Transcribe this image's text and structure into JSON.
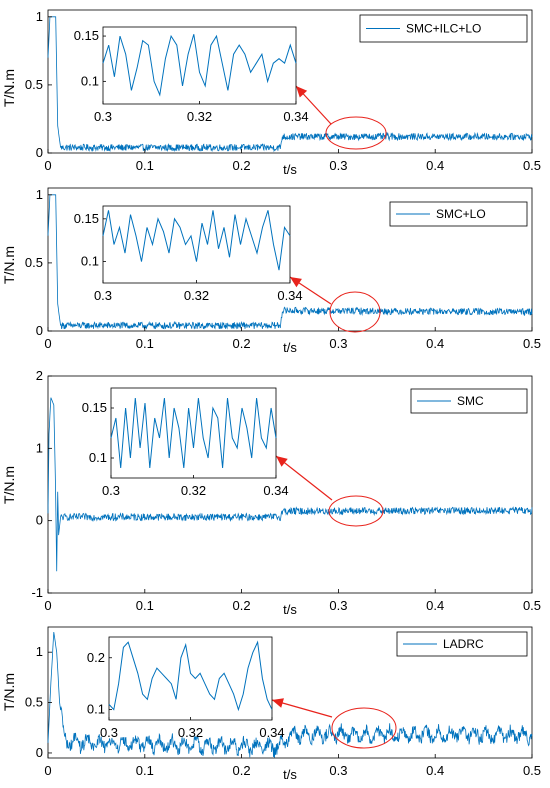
{
  "colors": {
    "series": "#0072BD",
    "annotation": "#E8231C",
    "axis": "#000000"
  },
  "chart_data": [
    {
      "type": "line",
      "legend": "SMC+ILC+LO",
      "legend_position": "top-right",
      "xlabel": "t/s",
      "ylabel": "T/N.m",
      "xlim": [
        0,
        0.5
      ],
      "ylim": [
        0,
        1.05
      ],
      "xticks": [
        "0",
        "0.1",
        "0.2",
        "t/s",
        "0.3",
        "0.4",
        "0.5"
      ],
      "yticks": [
        "0",
        "0.5",
        "1"
      ],
      "xtick_values": [
        0,
        0.1,
        0.2,
        0.3,
        0.4,
        0.5
      ],
      "ytick_values": [
        0,
        0.5,
        1
      ],
      "series": [
        {
          "profile": [
            [
              0,
              0.7
            ],
            [
              0.002,
              1.0
            ],
            [
              0.008,
              1.0
            ],
            [
              0.01,
              0.2
            ],
            [
              0.013,
              0.04
            ],
            [
              0.24,
              0.04
            ],
            [
              0.242,
              0.12
            ],
            [
              0.5,
              0.12
            ]
          ],
          "noise": 0.025
        }
      ],
      "inset": {
        "xlim": [
          0.3,
          0.34
        ],
        "ylim": [
          0.075,
          0.16
        ],
        "xticks": [
          "0.3",
          "0.32",
          "0.34"
        ],
        "xtick_values": [
          0.3,
          0.32,
          0.34
        ],
        "yticks": [
          "0.1",
          "0.15"
        ],
        "ytick_values": [
          0.1,
          0.15
        ],
        "values": [
          0.12,
          0.14,
          0.105,
          0.15,
          0.13,
          0.09,
          0.115,
          0.145,
          0.14,
          0.1,
          0.085,
          0.125,
          0.15,
          0.14,
          0.095,
          0.13,
          0.152,
          0.11,
          0.095,
          0.14,
          0.15,
          0.12,
          0.09,
          0.13,
          0.14,
          0.13,
          0.11,
          0.12,
          0.13,
          0.1,
          0.12,
          0.125,
          0.12,
          0.14,
          0.12
        ]
      }
    },
    {
      "type": "line",
      "legend": "SMC+LO",
      "legend_position": "top-right",
      "xlabel": "t/s",
      "ylabel": "T/N.m",
      "xlim": [
        0,
        0.5
      ],
      "ylim": [
        0,
        1.05
      ],
      "xticks": [
        "0",
        "0.1",
        "0.2",
        "t/s",
        "0.3",
        "0.4",
        "0.5"
      ],
      "yticks": [
        "0",
        "0.5",
        "1"
      ],
      "xtick_values": [
        0,
        0.1,
        0.2,
        0.3,
        0.4,
        0.5
      ],
      "ytick_values": [
        0,
        0.5,
        1
      ],
      "series": [
        {
          "profile": [
            [
              0,
              0.7
            ],
            [
              0.002,
              1.0
            ],
            [
              0.008,
              1.0
            ],
            [
              0.01,
              0.2
            ],
            [
              0.013,
              0.04
            ],
            [
              0.24,
              0.04
            ],
            [
              0.242,
              0.15
            ],
            [
              0.5,
              0.14
            ]
          ],
          "noise": 0.025
        }
      ],
      "inset": {
        "xlim": [
          0.3,
          0.34
        ],
        "ylim": [
          0.075,
          0.165
        ],
        "xticks": [
          "0.3",
          "0.32",
          "0.34"
        ],
        "xtick_values": [
          0.3,
          0.32,
          0.34
        ],
        "yticks": [
          "0.1",
          "0.15"
        ],
        "ytick_values": [
          0.1,
          0.15
        ],
        "values": [
          0.13,
          0.16,
          0.12,
          0.14,
          0.11,
          0.155,
          0.13,
          0.1,
          0.14,
          0.12,
          0.15,
          0.135,
          0.11,
          0.15,
          0.14,
          0.12,
          0.13,
          0.1,
          0.145,
          0.12,
          0.16,
          0.115,
          0.14,
          0.105,
          0.155,
          0.12,
          0.15,
          0.13,
          0.11,
          0.14,
          0.16,
          0.12,
          0.09,
          0.14,
          0.13
        ]
      }
    },
    {
      "type": "line",
      "legend": "SMC",
      "legend_position": "top-right",
      "xlabel": "t/s",
      "ylabel": "T/N.m",
      "xlim": [
        0,
        0.5
      ],
      "ylim": [
        -1,
        2
      ],
      "xticks": [
        "0",
        "0.1",
        "0.2",
        "t/s",
        "0.3",
        "0.4",
        "0.5"
      ],
      "yticks": [
        "-1",
        "0",
        "1",
        "2"
      ],
      "xtick_values": [
        0,
        0.1,
        0.2,
        0.3,
        0.4,
        0.5
      ],
      "ytick_values": [
        -1,
        0,
        1,
        2
      ],
      "series": [
        {
          "profile": [
            [
              0,
              0.1
            ],
            [
              0.001,
              1.2
            ],
            [
              0.003,
              1.7
            ],
            [
              0.006,
              1.6
            ],
            [
              0.008,
              0.3
            ],
            [
              0.009,
              -0.7
            ],
            [
              0.01,
              0.4
            ],
            [
              0.011,
              -0.2
            ],
            [
              0.013,
              0.05
            ],
            [
              0.24,
              0.05
            ],
            [
              0.242,
              0.13
            ],
            [
              0.5,
              0.14
            ]
          ],
          "noise": 0.05
        }
      ],
      "inset": {
        "xlim": [
          0.3,
          0.34
        ],
        "ylim": [
          0.08,
          0.17
        ],
        "xticks": [
          "0.3",
          "0.32",
          "0.34"
        ],
        "xtick_values": [
          0.3,
          0.32,
          0.34
        ],
        "yticks": [
          "0.1",
          "0.15"
        ],
        "ytick_values": [
          0.1,
          0.15
        ],
        "values": [
          0.12,
          0.14,
          0.09,
          0.15,
          0.1,
          0.16,
          0.11,
          0.155,
          0.09,
          0.14,
          0.12,
          0.16,
          0.1,
          0.15,
          0.13,
          0.09,
          0.15,
          0.11,
          0.16,
          0.12,
          0.1,
          0.15,
          0.14,
          0.09,
          0.16,
          0.12,
          0.11,
          0.15,
          0.13,
          0.1,
          0.16,
          0.12,
          0.11,
          0.15,
          0.12
        ]
      }
    },
    {
      "type": "line",
      "legend": "LADRC",
      "legend_position": "top-right",
      "xlabel": "t/s",
      "ylabel": "T/N.m",
      "xlim": [
        0,
        0.5
      ],
      "ylim": [
        -0.05,
        1.25
      ],
      "xticks": [
        "0",
        "0.1",
        "0.2",
        "t/s",
        "0.3",
        "0.4",
        "0.5"
      ],
      "yticks": [
        "0",
        "0.5",
        "1"
      ],
      "xtick_values": [
        0,
        0.1,
        0.2,
        0.3,
        0.4,
        0.5
      ],
      "ytick_values": [
        0,
        0.5,
        1
      ],
      "series": [
        {
          "profile": [
            [
              0,
              0.1
            ],
            [
              0.003,
              0.7
            ],
            [
              0.006,
              1.2
            ],
            [
              0.009,
              1.0
            ],
            [
              0.012,
              0.5
            ],
            [
              0.016,
              0.2
            ],
            [
              0.02,
              0.1
            ],
            [
              0.24,
              0.06
            ],
            [
              0.25,
              0.18
            ],
            [
              0.5,
              0.18
            ]
          ],
          "noise": 0.06,
          "wave": 0.06
        }
      ],
      "inset": {
        "xlim": [
          0.3,
          0.34
        ],
        "ylim": [
          0.08,
          0.24
        ],
        "xticks": [
          "0.3",
          "0.32",
          "0.34"
        ],
        "xtick_values": [
          0.3,
          0.32,
          0.34
        ],
        "yticks": [
          "0.1",
          "0.2"
        ],
        "ytick_values": [
          0.1,
          0.2
        ],
        "values": [
          0.11,
          0.1,
          0.15,
          0.22,
          0.23,
          0.2,
          0.17,
          0.13,
          0.12,
          0.16,
          0.18,
          0.17,
          0.16,
          0.15,
          0.12,
          0.2,
          0.225,
          0.17,
          0.16,
          0.17,
          0.15,
          0.13,
          0.12,
          0.16,
          0.17,
          0.15,
          0.13,
          0.1,
          0.13,
          0.18,
          0.21,
          0.23,
          0.16,
          0.12,
          0.1
        ]
      }
    }
  ]
}
